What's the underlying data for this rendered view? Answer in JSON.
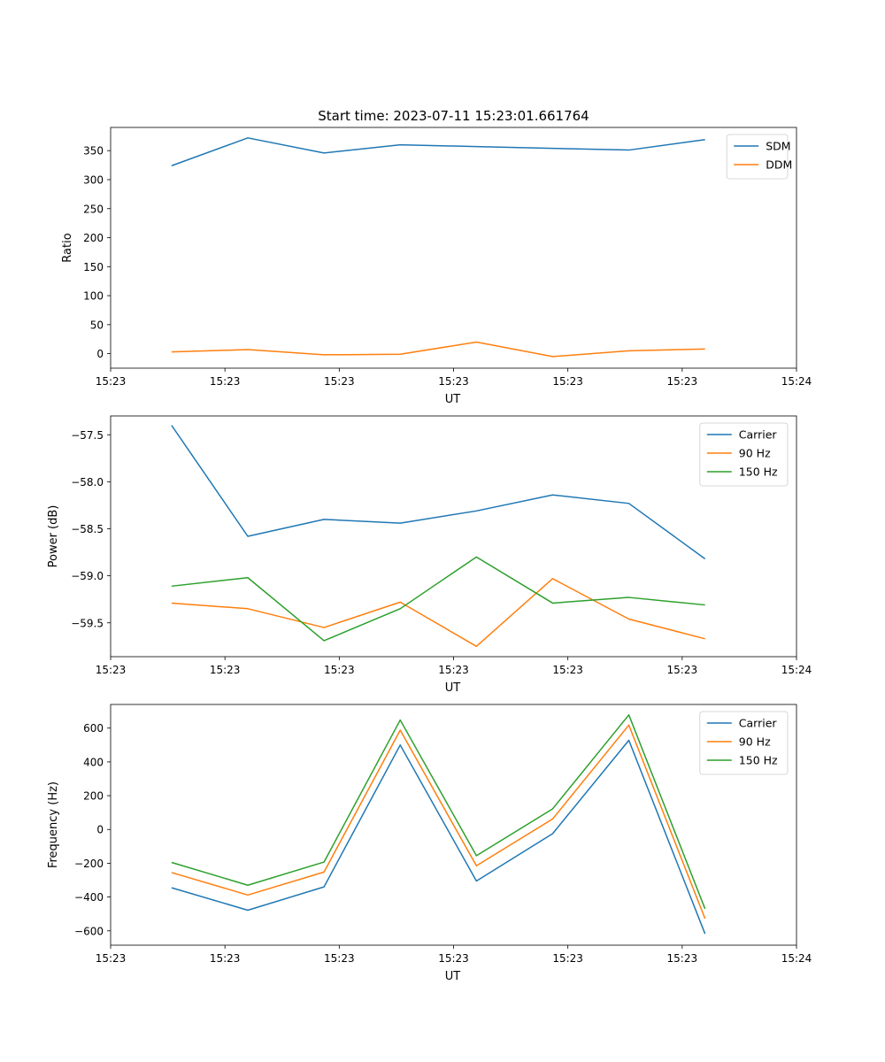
{
  "figure_title": "Start time: 2023-07-11 15:23:01.661764",
  "colors": {
    "blue": "#1f77b4",
    "orange": "#ff7f0e",
    "green": "#2ca02c"
  },
  "chart_data": [
    {
      "type": "line",
      "title": "Start time: 2023-07-11 15:23:01.661764",
      "xlabel": "UT",
      "ylabel": "Ratio",
      "x": [
        1,
        2,
        3,
        4,
        5,
        6,
        7,
        8
      ],
      "xlim": [
        0.2,
        9.2
      ],
      "xticks": [
        0.2,
        1.7,
        3.2,
        4.7,
        6.2,
        7.7,
        9.2
      ],
      "xtick_labels": [
        "15:23",
        "15:23",
        "15:23",
        "15:23",
        "15:23",
        "15:23",
        "15:24"
      ],
      "ylim": [
        -25,
        390
      ],
      "yticks": [
        0,
        50,
        100,
        150,
        200,
        250,
        300,
        350
      ],
      "ytick_labels": [
        "0",
        "50",
        "100",
        "150",
        "200",
        "250",
        "300",
        "350"
      ],
      "legend": "top-right",
      "series": [
        {
          "name": "SDM",
          "color": "#1f77b4",
          "values": [
            324,
            372,
            346,
            360,
            357,
            354,
            351,
            369
          ]
        },
        {
          "name": "DDM",
          "color": "#ff7f0e",
          "values": [
            3,
            7,
            -2,
            -1,
            20,
            -5,
            5,
            8
          ]
        }
      ]
    },
    {
      "type": "line",
      "title": "",
      "xlabel": "UT",
      "ylabel": "Power (dB)",
      "x": [
        1,
        2,
        3,
        4,
        5,
        6,
        7,
        8
      ],
      "xlim": [
        0.2,
        9.2
      ],
      "xticks": [
        0.2,
        1.7,
        3.2,
        4.7,
        6.2,
        7.7,
        9.2
      ],
      "xtick_labels": [
        "15:23",
        "15:23",
        "15:23",
        "15:23",
        "15:23",
        "15:23",
        "15:24"
      ],
      "ylim": [
        -59.86,
        -57.3
      ],
      "yticks": [
        -59.5,
        -59.0,
        -58.5,
        -58.0,
        -57.5
      ],
      "ytick_labels": [
        "−59.5",
        "−59.0",
        "−58.5",
        "−58.0",
        "−57.5"
      ],
      "legend": "top-right",
      "series": [
        {
          "name": "Carrier",
          "color": "#1f77b4",
          "values": [
            -57.4,
            -58.58,
            -58.4,
            -58.44,
            -58.31,
            -58.14,
            -58.23,
            -58.82
          ]
        },
        {
          "name": "90 Hz",
          "color": "#ff7f0e",
          "values": [
            -59.29,
            -59.35,
            -59.55,
            -59.28,
            -59.75,
            -59.03,
            -59.46,
            -59.67
          ]
        },
        {
          "name": "150 Hz",
          "color": "#2ca02c",
          "values": [
            -59.11,
            -59.02,
            -59.69,
            -59.35,
            -58.8,
            -59.29,
            -59.23,
            -59.31
          ]
        }
      ]
    },
    {
      "type": "line",
      "title": "",
      "xlabel": "UT",
      "ylabel": "Frequency (Hz)",
      "x": [
        1,
        2,
        3,
        4,
        5,
        6,
        7,
        8
      ],
      "xlim": [
        0.2,
        9.2
      ],
      "xticks": [
        0.2,
        1.7,
        3.2,
        4.7,
        6.2,
        7.7,
        9.2
      ],
      "xtick_labels": [
        "15:23",
        "15:23",
        "15:23",
        "15:23",
        "15:23",
        "15:23",
        "15:24"
      ],
      "ylim": [
        -685,
        740
      ],
      "yticks": [
        -600,
        -400,
        -200,
        0,
        200,
        400,
        600
      ],
      "ytick_labels": [
        "−600",
        "−400",
        "−200",
        "0",
        "200",
        "400",
        "600"
      ],
      "legend": "top-right",
      "series": [
        {
          "name": "Carrier",
          "color": "#1f77b4",
          "values": [
            -345,
            -478,
            -340,
            500,
            -305,
            -25,
            528,
            -618
          ]
        },
        {
          "name": "90 Hz",
          "color": "#ff7f0e",
          "values": [
            -255,
            -388,
            -252,
            588,
            -215,
            62,
            618,
            -528
          ]
        },
        {
          "name": "150 Hz",
          "color": "#2ca02c",
          "values": [
            -195,
            -330,
            -193,
            648,
            -155,
            122,
            678,
            -470
          ]
        }
      ]
    }
  ]
}
